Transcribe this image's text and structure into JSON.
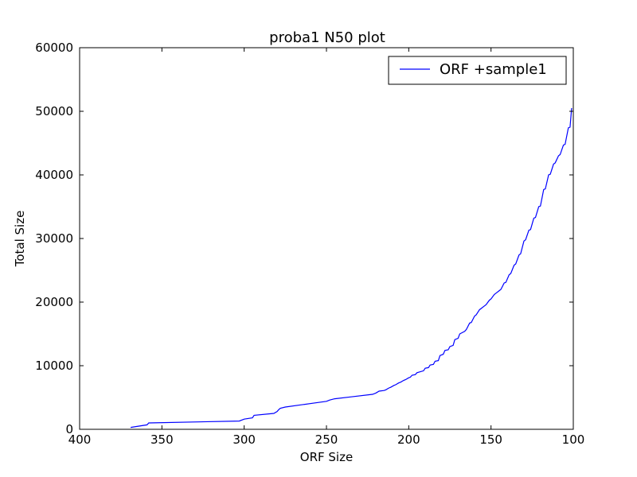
{
  "chart_data": {
    "type": "line",
    "title": "proba1 N50 plot",
    "xlabel": "ORF Size",
    "ylabel": "Total Size",
    "xlim": [
      400,
      100
    ],
    "ylim": [
      0,
      60000
    ],
    "x_reversed": true,
    "xticks": [
      400,
      350,
      300,
      250,
      200,
      150,
      100
    ],
    "yticks": [
      0,
      10000,
      20000,
      30000,
      40000,
      50000,
      60000
    ],
    "grid": false,
    "legend_position": "top-right",
    "series": [
      {
        "name": "ORF +sample1",
        "color": "#0000ff",
        "x": [
          369,
          359,
          358,
          303,
          300,
          295,
          294,
          282,
          280,
          279,
          278,
          275,
          250,
          248,
          245,
          235,
          222,
          220,
          218,
          215,
          214,
          212,
          211,
          209,
          208,
          206,
          205,
          203,
          202,
          200,
          199,
          198,
          196,
          195,
          191,
          190,
          188,
          187,
          185,
          184,
          182,
          181,
          179,
          178,
          176,
          175,
          173,
          172,
          170,
          169,
          166,
          165,
          163,
          162,
          160,
          159,
          157,
          156,
          154,
          153,
          151,
          150,
          148,
          147,
          145,
          144,
          142,
          141,
          139,
          138,
          136,
          135,
          133,
          132,
          130,
          129,
          127,
          126,
          124,
          123,
          121,
          120,
          118,
          117,
          115,
          114,
          112,
          111,
          109,
          108,
          106,
          105,
          103,
          102,
          101
        ],
        "y": [
          300,
          700,
          1000,
          1300,
          1600,
          1800,
          2200,
          2500,
          2800,
          3100,
          3300,
          3500,
          4400,
          4600,
          4800,
          5100,
          5500,
          5700,
          6000,
          6100,
          6200,
          6500,
          6600,
          6900,
          7000,
          7300,
          7400,
          7700,
          7800,
          8100,
          8200,
          8500,
          8600,
          8900,
          9200,
          9600,
          9700,
          10100,
          10200,
          10700,
          10800,
          11600,
          11800,
          12400,
          12500,
          13000,
          13200,
          14100,
          14300,
          15000,
          15400,
          15700,
          16700,
          16800,
          17800,
          18000,
          18800,
          19000,
          19400,
          19600,
          20300,
          20500,
          21200,
          21400,
          21800,
          22000,
          23000,
          23100,
          24300,
          24500,
          25800,
          26000,
          27400,
          27600,
          29600,
          29800,
          31300,
          31400,
          33200,
          33300,
          35000,
          35100,
          37700,
          37800,
          40000,
          40100,
          41700,
          41900,
          43000,
          43200,
          44700,
          44800,
          47400,
          47500,
          50500
        ]
      }
    ]
  }
}
